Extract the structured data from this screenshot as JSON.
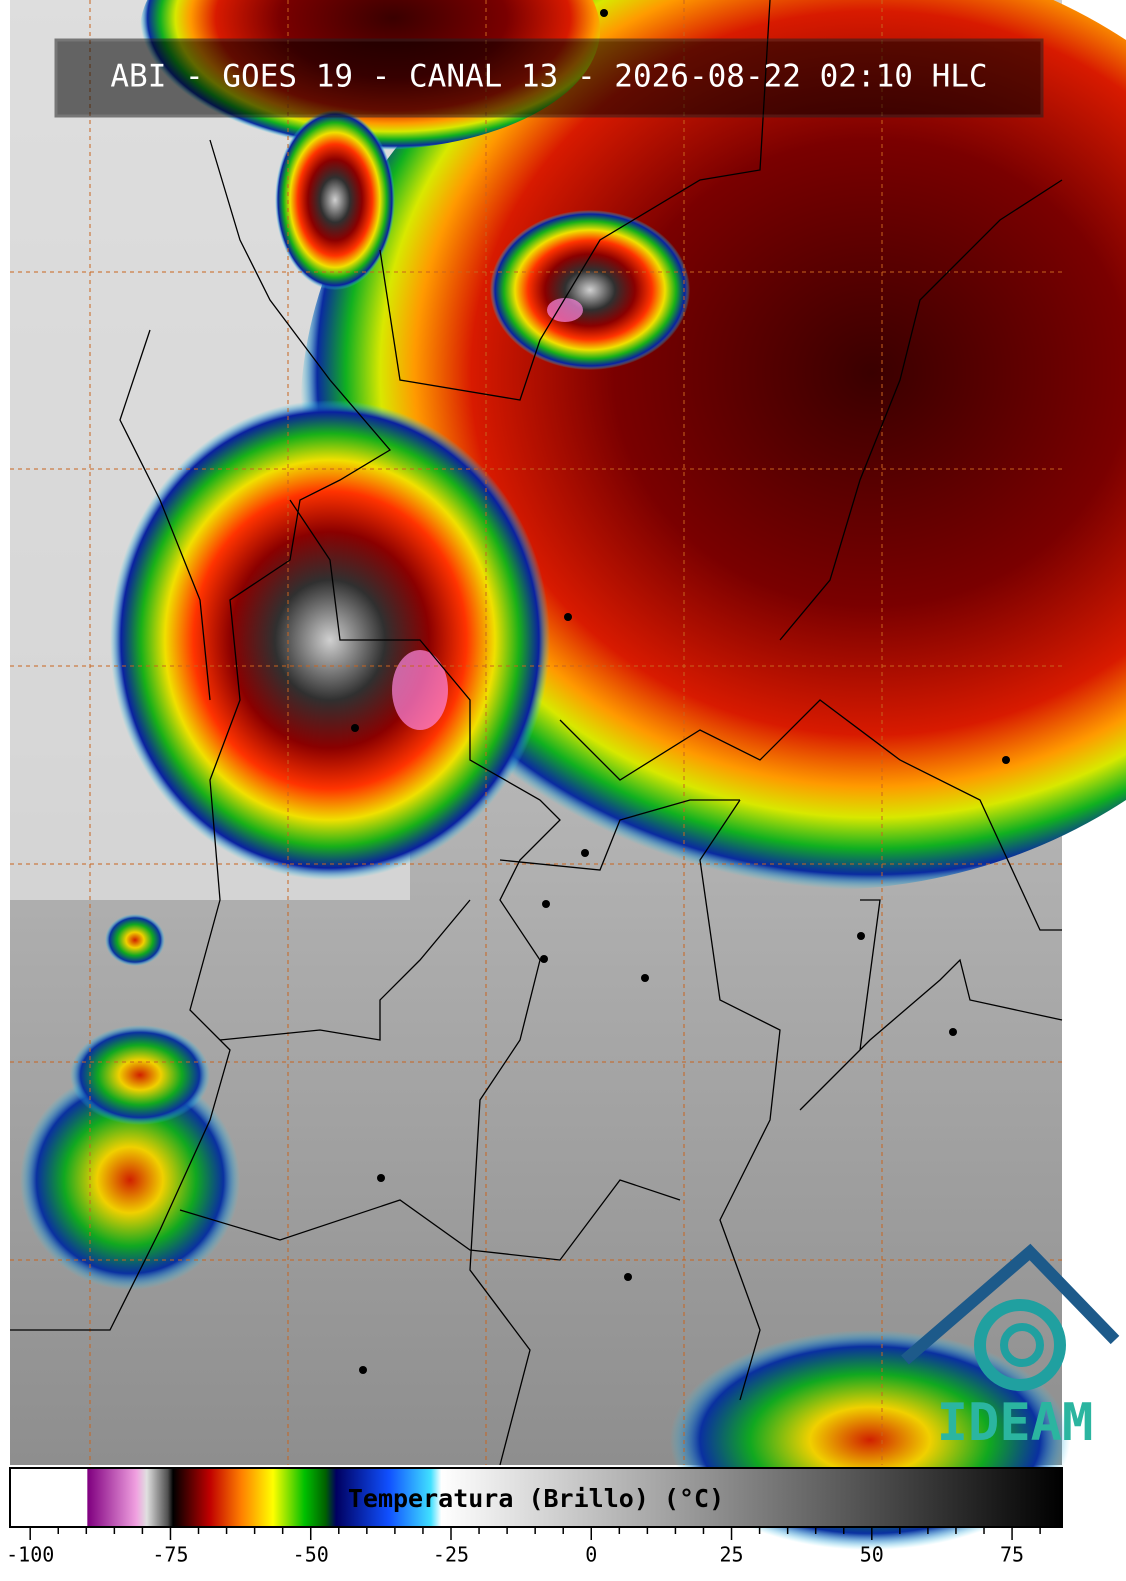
{
  "header": {
    "title": "ABI - GOES 19 - CANAL 13 - 2026-08-22 02:10 HLC"
  },
  "colorbar": {
    "label": "Temperatura (Brillo) (°C)",
    "lim": [
      -103.6,
      83.9
    ],
    "ticks": [
      -100,
      -75,
      -50,
      -25,
      0,
      25,
      50,
      75
    ],
    "minor_ticks": [
      -95,
      -90,
      -85,
      -80,
      -70,
      -65,
      -60,
      -55,
      -45,
      -40,
      -35,
      -30,
      -20,
      -15,
      -10,
      -5,
      5,
      10,
      15,
      20,
      30,
      35,
      40,
      45,
      55,
      60,
      65,
      70,
      80
    ]
  },
  "logo": {
    "text": "IDEAM"
  }
}
